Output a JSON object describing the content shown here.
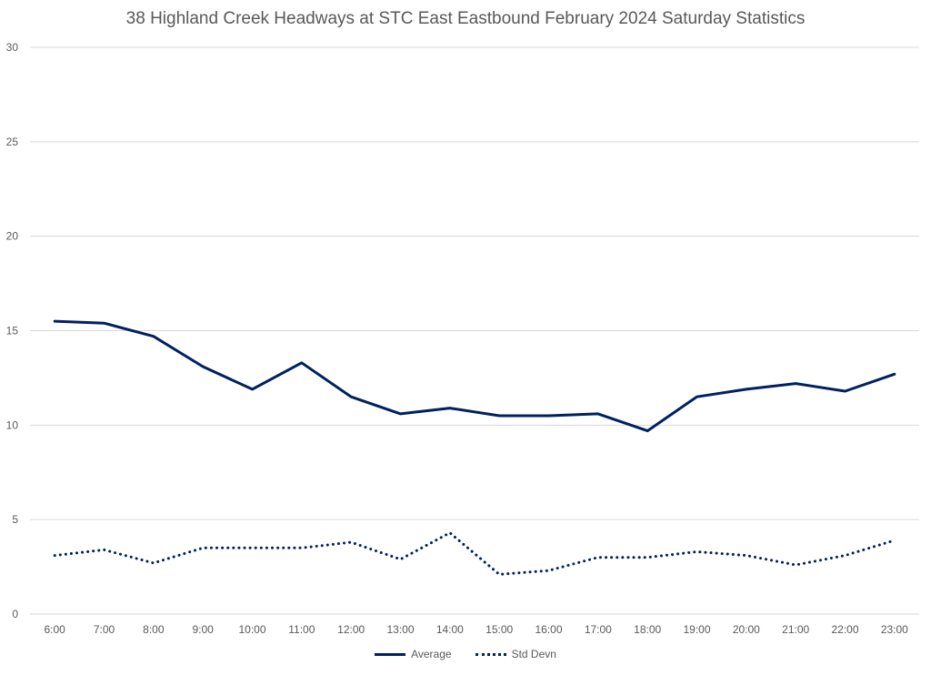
{
  "chart_data": {
    "type": "line",
    "title": "38 Highland Creek Headways at STC East Eastbound February 2024 Saturday Statistics",
    "xlabel": "",
    "ylabel": "",
    "ylim": [
      0,
      30
    ],
    "yticks": [
      0,
      5,
      10,
      15,
      20,
      25,
      30
    ],
    "grid": true,
    "legend_position": "bottom",
    "categories": [
      "6:00",
      "7:00",
      "8:00",
      "9:00",
      "10:00",
      "11:00",
      "12:00",
      "13:00",
      "14:00",
      "15:00",
      "16:00",
      "17:00",
      "18:00",
      "19:00",
      "20:00",
      "21:00",
      "22:00",
      "23:00"
    ],
    "series": [
      {
        "name": "Average",
        "style": "solid",
        "color": "#002060",
        "values": [
          15.5,
          15.4,
          14.7,
          13.1,
          11.9,
          13.3,
          11.5,
          10.6,
          10.9,
          10.5,
          10.5,
          10.6,
          9.7,
          11.5,
          11.9,
          12.2,
          11.8,
          12.7
        ]
      },
      {
        "name": "Std Devn",
        "style": "dotted",
        "color": "#002060",
        "values": [
          3.1,
          3.4,
          2.7,
          3.5,
          3.5,
          3.5,
          3.8,
          2.9,
          4.3,
          2.1,
          2.3,
          3.0,
          3.0,
          3.3,
          3.1,
          2.6,
          3.1,
          3.9
        ]
      }
    ]
  },
  "colors": {
    "grid": "#d9d9d9",
    "axis_text": "#595959",
    "series": "#002060"
  }
}
